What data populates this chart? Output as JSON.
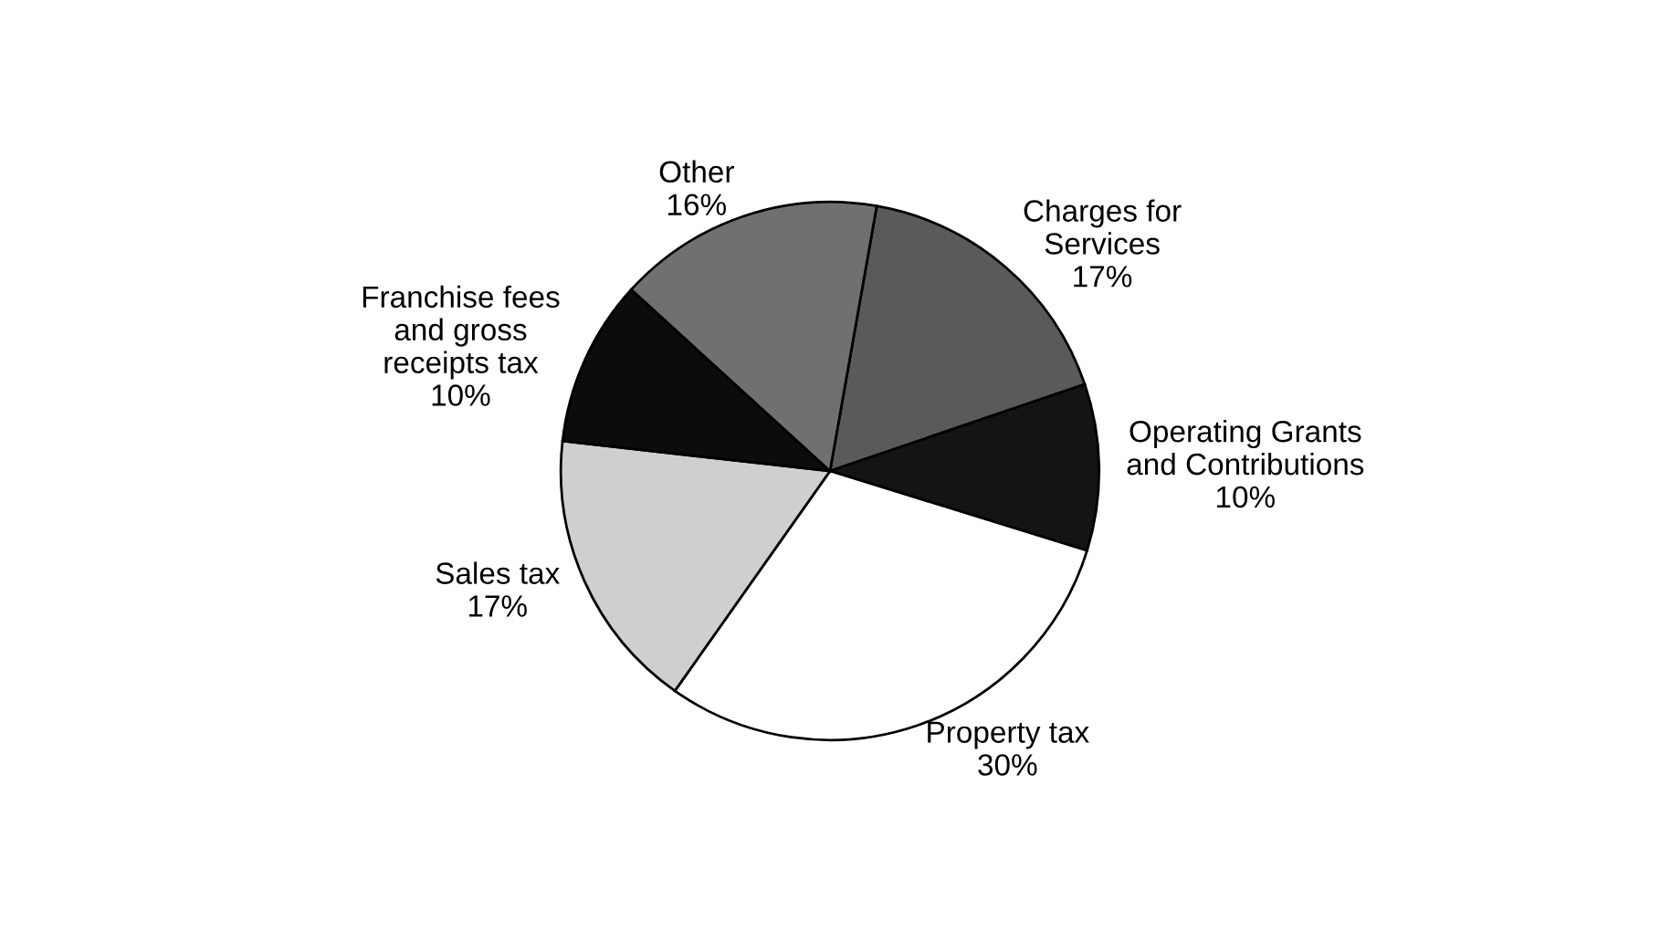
{
  "chart_data": {
    "type": "pie",
    "categories": [
      "Charges for\nServices",
      "Operating Grants\nand Contributions",
      "Property tax",
      "Sales tax",
      "Franchise fees\nand gross\nreceipts tax",
      "Other"
    ],
    "values": [
      17,
      10,
      30,
      17,
      10,
      16
    ],
    "value_labels": [
      "17%",
      "10%",
      "30%",
      "17%",
      "10%",
      "16%"
    ],
    "colors": [
      "#5a5a5a",
      "#141414",
      "#ffffff",
      "#cfcfcf",
      "#0c0c0c",
      "#707070"
    ],
    "legend": false
  }
}
